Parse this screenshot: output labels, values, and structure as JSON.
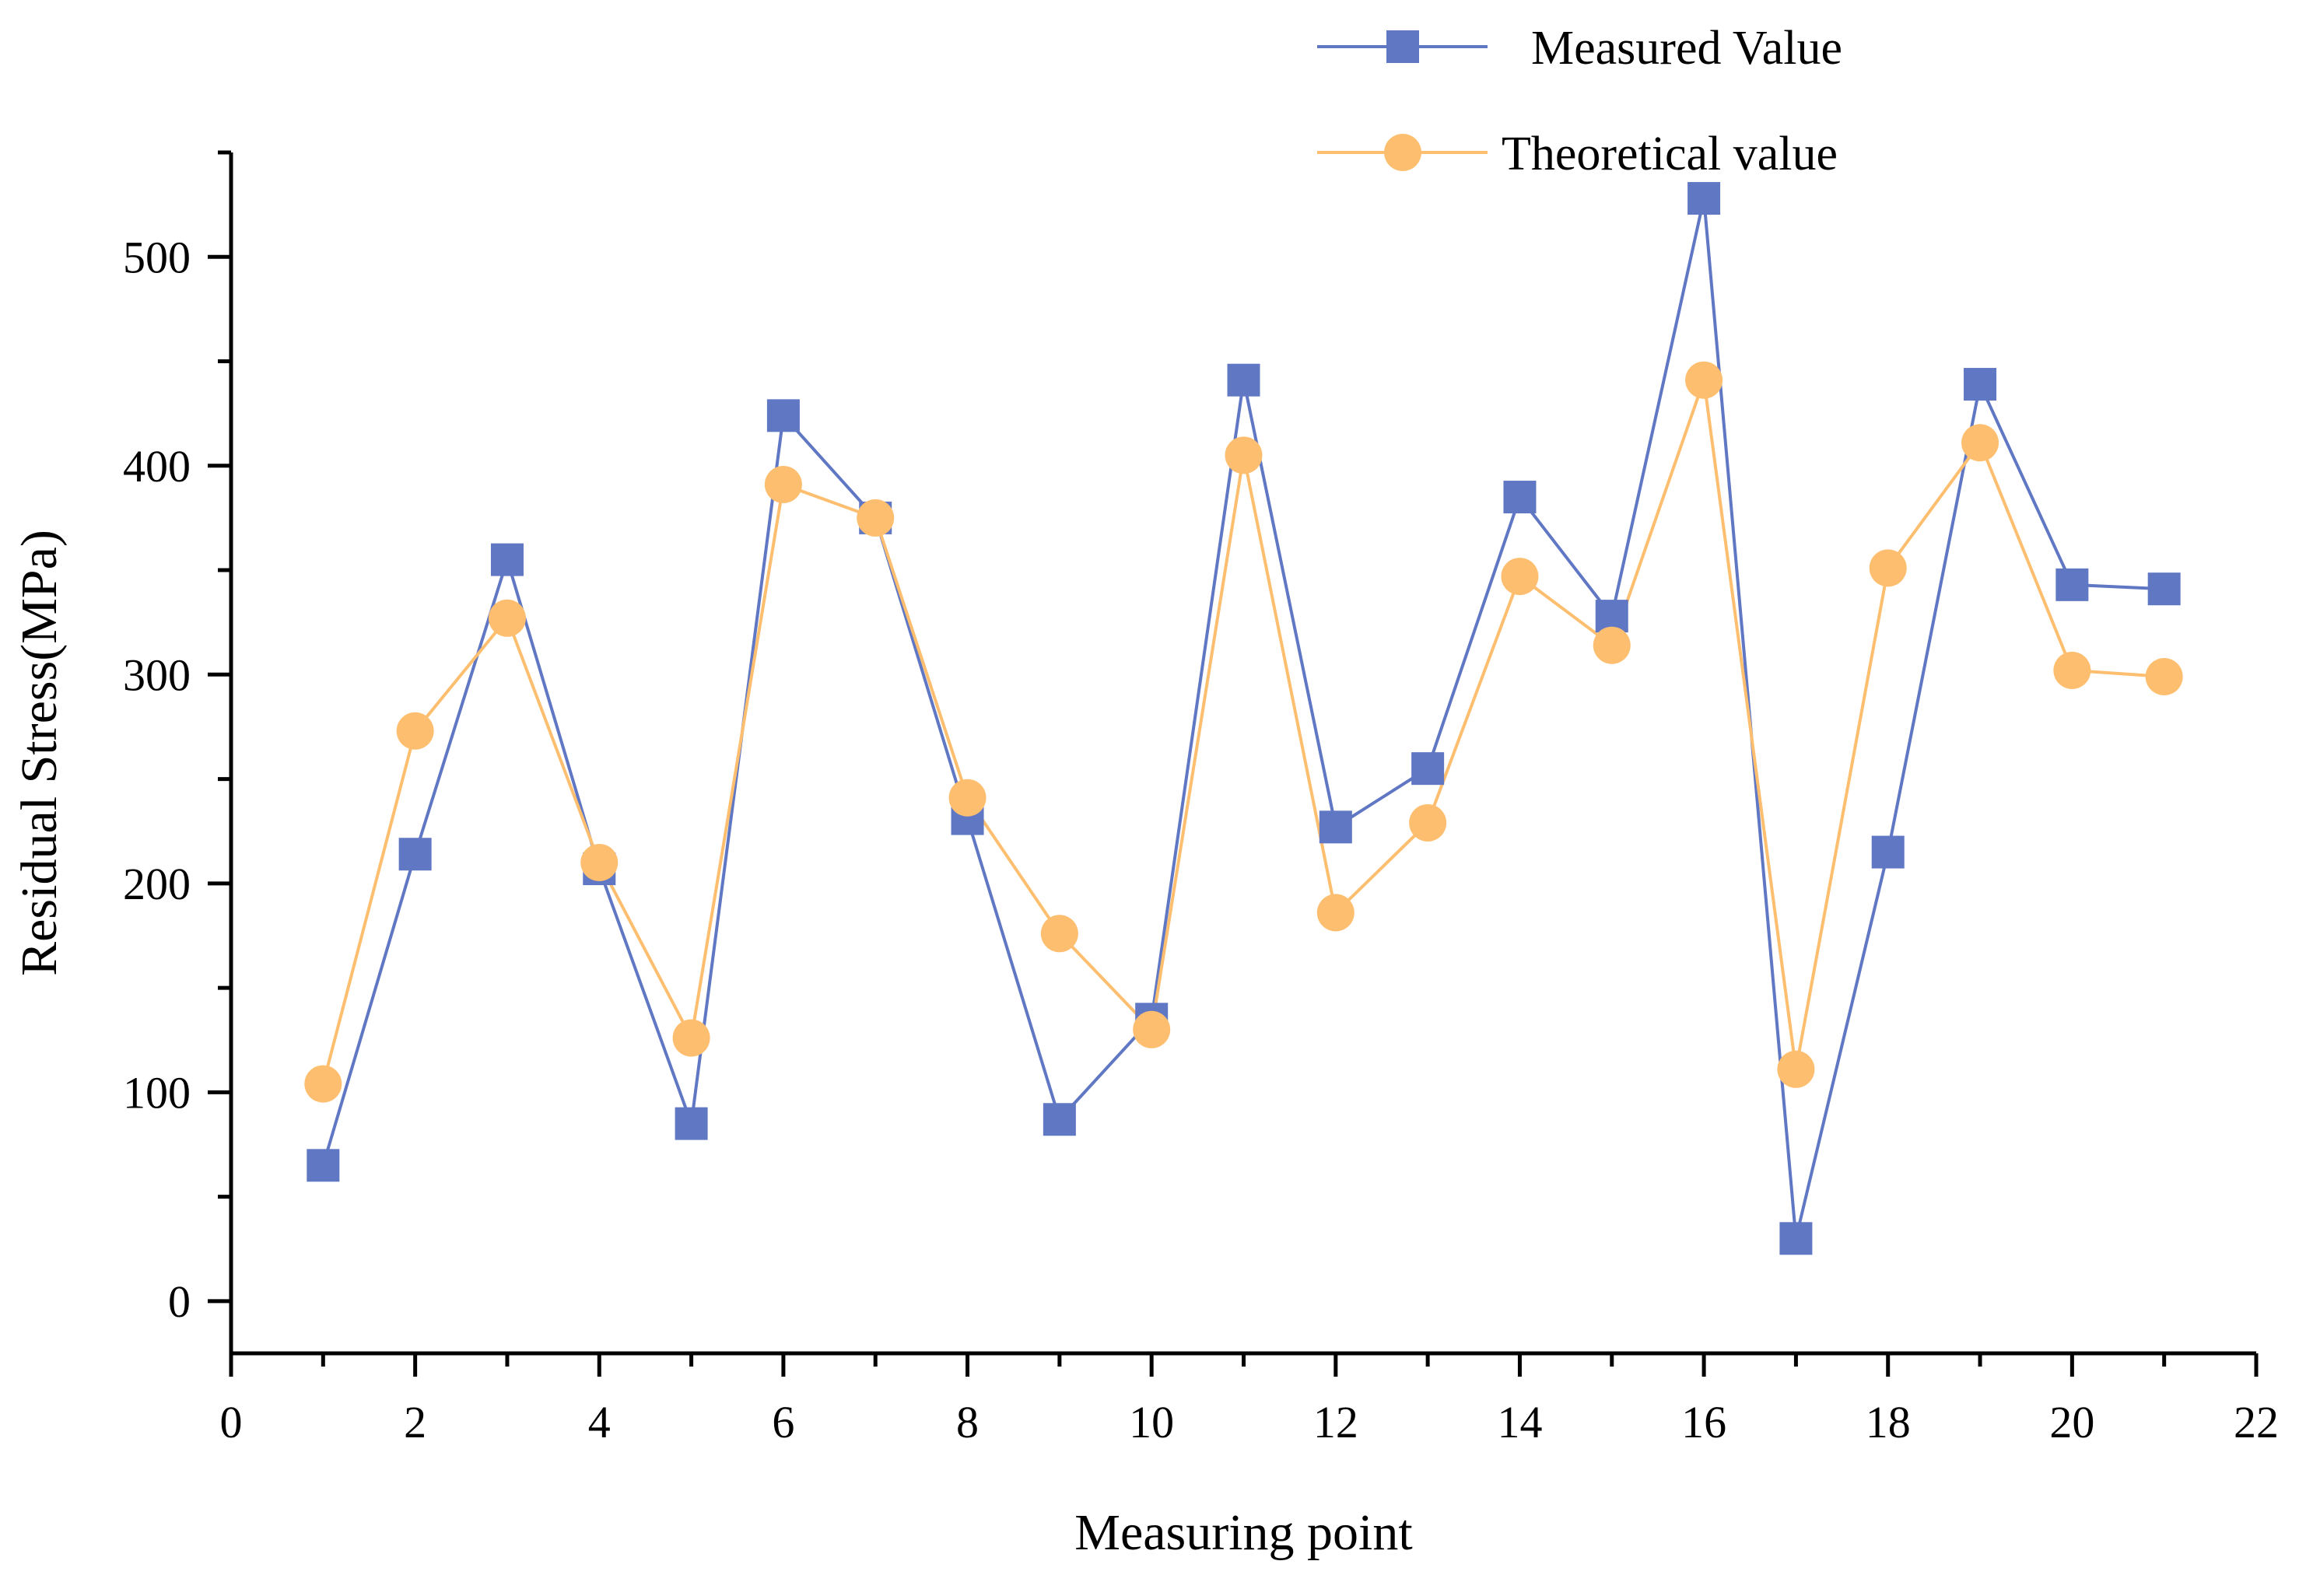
{
  "chart_data": {
    "type": "line",
    "title": "",
    "xlabel": "Measuring point",
    "ylabel": "Residual Stress(MPa)",
    "xlim": [
      0,
      22
    ],
    "ylim": [
      -25,
      550
    ],
    "x_ticks": [
      0,
      2,
      4,
      6,
      8,
      10,
      12,
      14,
      16,
      18,
      20,
      22
    ],
    "y_ticks": [
      0,
      100,
      200,
      300,
      400,
      500
    ],
    "grid": false,
    "legend_position": "top-right",
    "x": [
      1,
      2,
      3,
      4,
      5,
      6,
      7,
      8,
      9,
      10,
      11,
      12,
      13,
      14,
      15,
      16,
      17,
      18,
      19,
      20,
      21
    ],
    "series": [
      {
        "name": "Measured Value",
        "marker": "square",
        "color": "#6077c4",
        "values": [
          65,
          214,
          355,
          207,
          85,
          424,
          375,
          231,
          87,
          135,
          441,
          227,
          255,
          385,
          328,
          528,
          30,
          215,
          439,
          343,
          341
        ]
      },
      {
        "name": "Theoretical value",
        "marker": "circle",
        "color": "#fdbf6f",
        "values": [
          104,
          273,
          327,
          210,
          126,
          391,
          375,
          241,
          176,
          130,
          405,
          186,
          229,
          347,
          314,
          441,
          111,
          351,
          411,
          302,
          299
        ]
      }
    ]
  }
}
